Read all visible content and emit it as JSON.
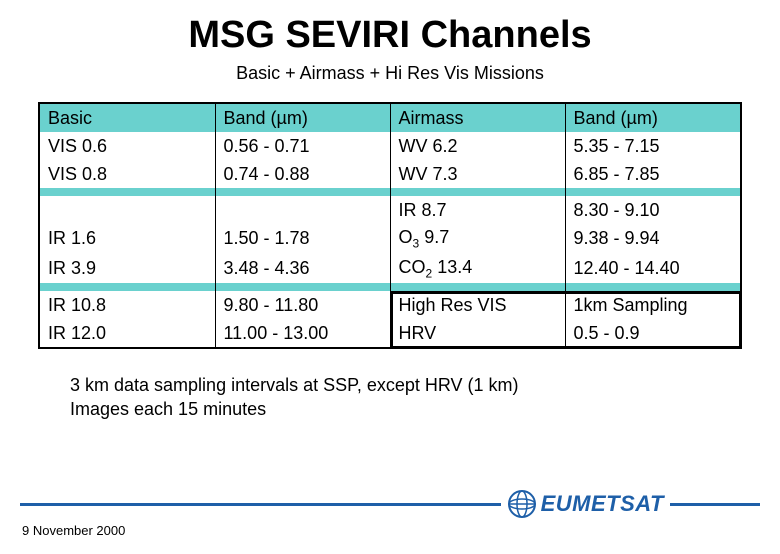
{
  "title": "MSG SEVIRI Channels",
  "subtitle": "Basic + Airmass + Hi Res Vis Missions",
  "colors": {
    "header_bg": "#6ad1ce",
    "border": "#000000",
    "accent": "#1e5fa8",
    "background": "#ffffff"
  },
  "table": {
    "columns": [
      "Basic",
      "Band (µm)",
      "Airmass",
      "Band (µm)"
    ],
    "header_labels": {
      "a": "Basic",
      "b": "Band (µm)",
      "c": "Airmass",
      "d": "Band (µm)"
    },
    "rows1": [
      {
        "a": "VIS 0.6",
        "b": "0.56 - 0.71",
        "c": "WV 6.2",
        "d": "5.35 - 7.15"
      },
      {
        "a": "VIS 0.8",
        "b": "0.74 - 0.88",
        "c": "WV 7.3",
        "d": "6.85 - 7.85"
      }
    ],
    "rows2": [
      {
        "a": "",
        "b": "",
        "c": "IR 8.7",
        "d": "8.30 - 9.10"
      },
      {
        "a": "IR 1.6",
        "b": "1.50 - 1.78",
        "c_pre": "O",
        "c_sub": "3",
        "c_post": "  9.7",
        "d": "9.38 - 9.94"
      },
      {
        "a": "IR 3.9",
        "b": "3.48 - 4.36",
        "c_pre": "CO",
        "c_sub": "2",
        "c_post": "  13.4",
        "d": "12.40 - 14.40"
      }
    ],
    "rows3_header": {
      "a": "IR 10.8",
      "b": "9.80 - 11.80",
      "c": "High Res VIS",
      "d": "1km Sampling"
    },
    "rows3": [
      {
        "a": "IR 12.0",
        "b": "11.00 - 13.00",
        "c": "HRV",
        "d": "0.5  -  0.9"
      }
    ]
  },
  "caption_line1": "3 km data sampling intervals at SSP, except HRV (1 km)",
  "caption_line2": "Images each 15 minutes",
  "footer": {
    "date": "9 November 2000",
    "logo_text": "EUMETSAT"
  },
  "highlight": {
    "comment": "box around High Res VIS / HRV section (cols c-d, last two rows)"
  }
}
